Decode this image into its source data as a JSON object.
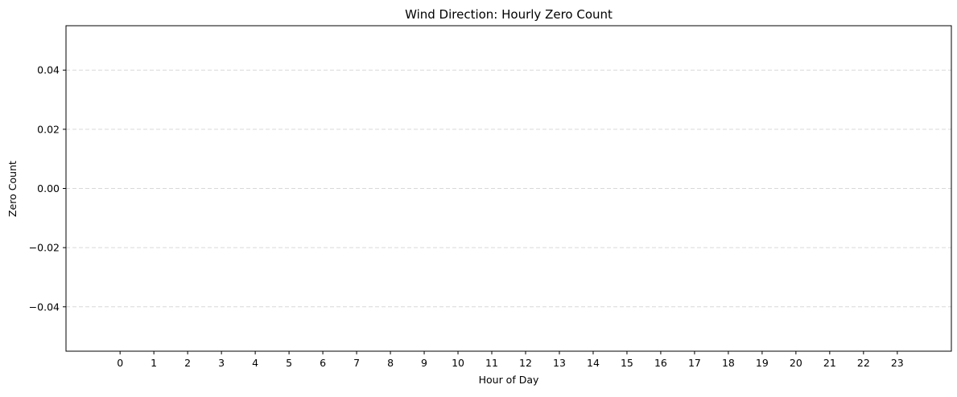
{
  "chart_data": {
    "type": "bar",
    "title": "Wind Direction: Hourly Zero Count",
    "xlabel": "Hour of Day",
    "ylabel": "Zero Count",
    "categories": [
      "0",
      "1",
      "2",
      "3",
      "4",
      "5",
      "6",
      "7",
      "8",
      "9",
      "10",
      "11",
      "12",
      "13",
      "14",
      "15",
      "16",
      "17",
      "18",
      "19",
      "20",
      "21",
      "22",
      "23"
    ],
    "values": [
      0,
      0,
      0,
      0,
      0,
      0,
      0,
      0,
      0,
      0,
      0,
      0,
      0,
      0,
      0,
      0,
      0,
      0,
      0,
      0,
      0,
      0,
      0,
      0
    ],
    "ylim": [
      -0.055,
      0.055
    ],
    "yticks": [
      "0.04",
      "0.02",
      "0.00",
      "−0.02",
      "−0.04"
    ],
    "ytick_values": [
      0.04,
      0.02,
      0.0,
      -0.02,
      -0.04
    ],
    "grid": "y-dashed",
    "legend": "none"
  },
  "colors": {
    "bar": "#1f77b4",
    "grid": "#d9d9d9",
    "axis": "#000000"
  }
}
